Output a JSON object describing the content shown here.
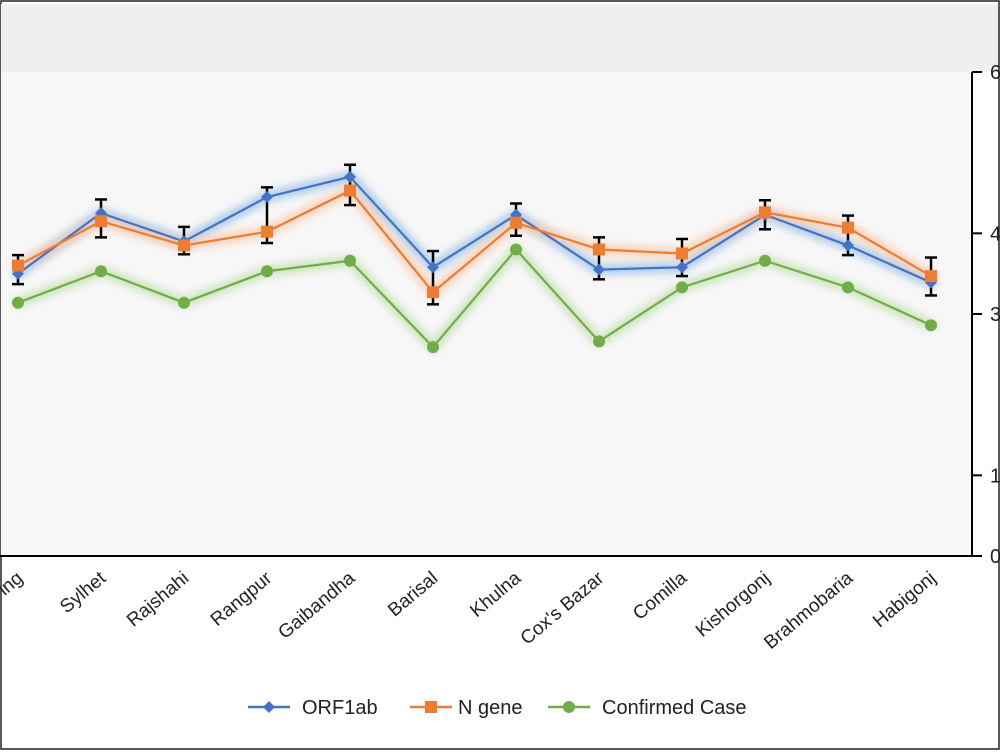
{
  "chart_data": {
    "type": "line",
    "categories": [
      "Mymensingh",
      "Sylhet",
      "Rajshahi",
      "Rangpur",
      "Gaibandha",
      "Barisal",
      "Khulna",
      "Cox's Bazar",
      "Comilla",
      "Kishorgonj",
      "Brahmobaria",
      "Habigonj"
    ],
    "visible_category_labels": [
      "ing",
      "Sylhet",
      "Rajshahi",
      "Rangpur",
      "Gaibandha",
      "Barisal",
      "Khulna",
      "Cox's Bazar",
      "Comilla",
      "Kishorgonj",
      "Brahmobaria",
      "Habigonj"
    ],
    "ylim": [
      0,
      6
    ],
    "right_axis_ticks": [
      "0",
      "1",
      "3",
      "4",
      "6"
    ],
    "series": [
      {
        "name": "ORF1ab",
        "color": "#4472C4",
        "marker": "diamond",
        "values": [
          3.5,
          4.25,
          3.9,
          4.45,
          4.7,
          3.58,
          4.23,
          3.55,
          3.58,
          4.23,
          3.85,
          3.39
        ],
        "error_low": [
          3.37,
          3.95,
          3.74,
          3.88,
          4.35,
          3.12,
          3.97,
          3.43,
          3.47,
          4.05,
          3.73,
          3.23
        ],
        "error_high": [
          3.73,
          4.42,
          4.08,
          4.57,
          4.85,
          3.78,
          4.37,
          3.95,
          3.93,
          4.41,
          4.22,
          3.7
        ]
      },
      {
        "name": "N gene",
        "color": "#ED7D31",
        "marker": "square",
        "values": [
          3.6,
          4.15,
          3.85,
          4.02,
          4.53,
          3.27,
          4.13,
          3.8,
          3.75,
          4.26,
          4.07,
          3.47
        ]
      },
      {
        "name": "Confirmed Case",
        "color": "#70AD47",
        "marker": "circle",
        "values": [
          3.14,
          3.53,
          3.14,
          3.53,
          3.66,
          2.59,
          3.8,
          2.66,
          3.33,
          3.66,
          3.33,
          2.86
        ]
      }
    ],
    "legend_position": "bottom",
    "grid": false
  }
}
